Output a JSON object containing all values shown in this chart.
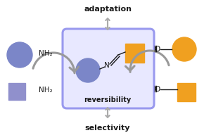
{
  "bg_color": "#ffffff",
  "blue_circle_color": "#7b86c8",
  "blue_square_color": "#9090cc",
  "orange_circle_color": "#f0a020",
  "orange_square_color": "#f0a020",
  "box_edge_color": "#9999ee",
  "box_fill_color": "#e8e8ff",
  "text_adaptation": "adaptation",
  "text_selectivity": "selectivity",
  "text_reversibility": "reversibility",
  "text_nh2": "NH₂",
  "text_o": "O",
  "text_n": "N",
  "gray_arrow": "#999999",
  "black": "#1a1a1a"
}
